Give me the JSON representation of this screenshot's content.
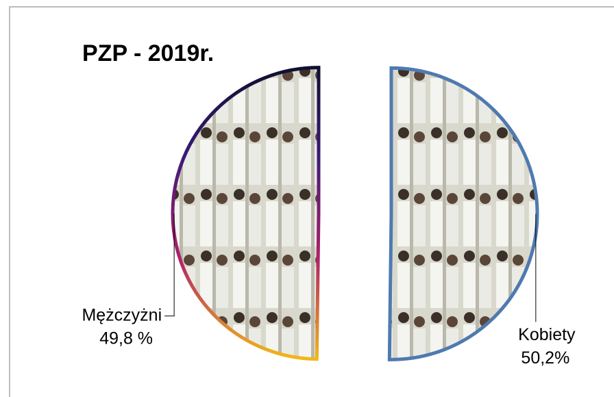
{
  "chart_data": {
    "type": "pie",
    "title": "PZP - 2019r.",
    "categories": [
      "Kobiety",
      "Mężczyżni"
    ],
    "values": [
      50.2,
      49.8
    ],
    "value_labels": [
      "50,2%",
      "49,8 %"
    ],
    "colors": [
      "#4f7ab0",
      "#6a2a7a"
    ]
  }
}
